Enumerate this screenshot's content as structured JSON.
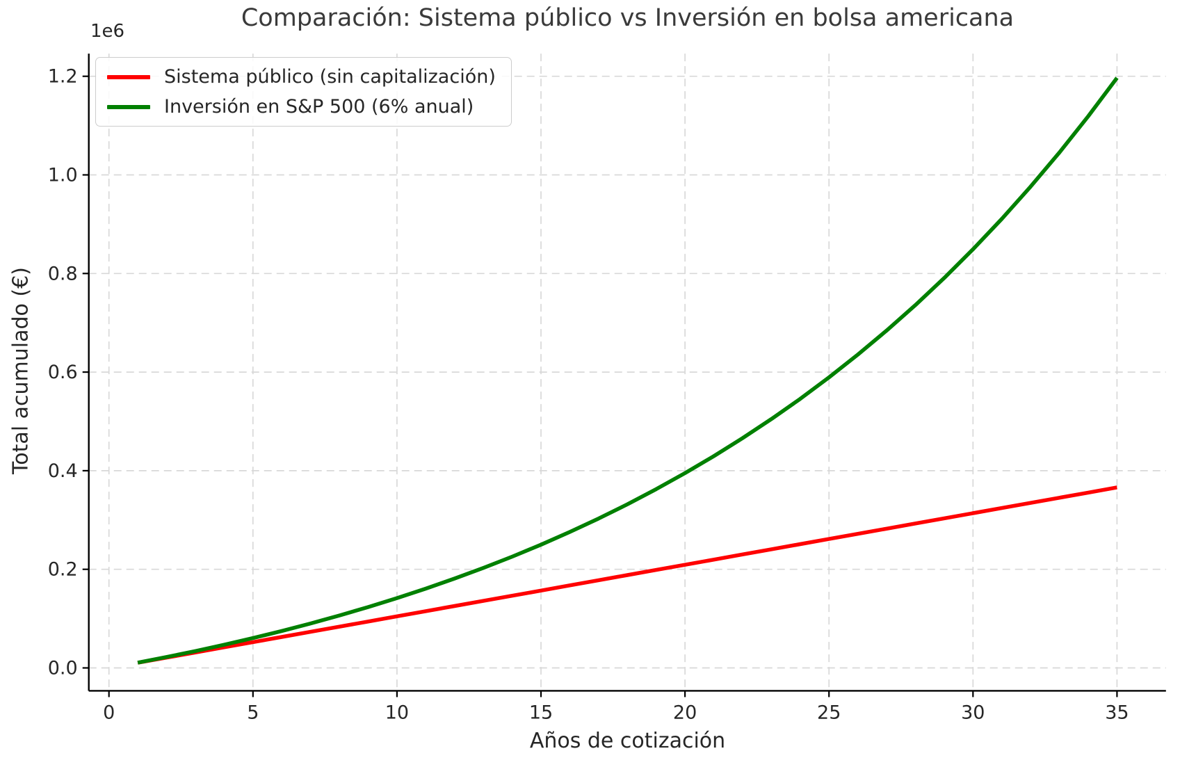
{
  "chart_data": {
    "type": "line",
    "title": "Comparación: Sistema público vs Inversión en bolsa americana",
    "xlabel": "Años de cotización",
    "ylabel": "Total acumulado (€)",
    "y_offset_label": "1e6",
    "x": [
      1,
      2,
      3,
      4,
      5,
      6,
      7,
      8,
      9,
      10,
      11,
      12,
      13,
      14,
      15,
      16,
      17,
      18,
      19,
      20,
      21,
      22,
      23,
      24,
      25,
      26,
      27,
      28,
      29,
      30,
      31,
      32,
      33,
      34,
      35
    ],
    "series": [
      {
        "name": "Sistema público (sin capitalización)",
        "color": "#ff0000",
        "values": [
          10460,
          20920,
          31380,
          41840,
          52300,
          62760,
          73220,
          83680,
          94140,
          104600,
          115060,
          125520,
          135980,
          146440,
          156900,
          167360,
          177820,
          188280,
          198740,
          209200,
          219660,
          230120,
          240580,
          251040,
          261500,
          271960,
          282420,
          292880,
          303340,
          313800,
          324260,
          334720,
          345180,
          355640,
          366100
        ]
      },
      {
        "name": "Inversión en S&P 500 (6% anual)",
        "color": "#008000",
        "values": [
          10740,
          22124,
          34192,
          46983,
          60542,
          74915,
          90150,
          106299,
          123417,
          141562,
          160795,
          181183,
          202794,
          225702,
          249984,
          275723,
          303006,
          331927,
          362582,
          395077,
          429522,
          466033,
          504735,
          545759,
          589245,
          635340,
          684200,
          735992,
          790891,
          849085,
          910770,
          976156,
          1045466,
          1118934,
          1196810
        ]
      }
    ],
    "x_ticks": [
      0,
      5,
      10,
      15,
      20,
      25,
      30,
      35
    ],
    "y_ticks": [
      {
        "value": 0,
        "label": "0.0"
      },
      {
        "value": 200000,
        "label": "0.2"
      },
      {
        "value": 400000,
        "label": "0.4"
      },
      {
        "value": 600000,
        "label": "0.6"
      },
      {
        "value": 800000,
        "label": "0.8"
      },
      {
        "value": 1000000,
        "label": "1.0"
      },
      {
        "value": 1200000,
        "label": "1.2"
      }
    ],
    "xlim": [
      -0.7,
      36.7
    ],
    "ylim": [
      -46500,
      1246000
    ],
    "grid": true,
    "grid_style": "dashed",
    "legend_position": "upper left"
  },
  "colors": {
    "background": "#ffffff",
    "grid": "#d8d8d8",
    "spine": "#000000",
    "title_text": "#3a3a3a",
    "text": "#262626"
  }
}
